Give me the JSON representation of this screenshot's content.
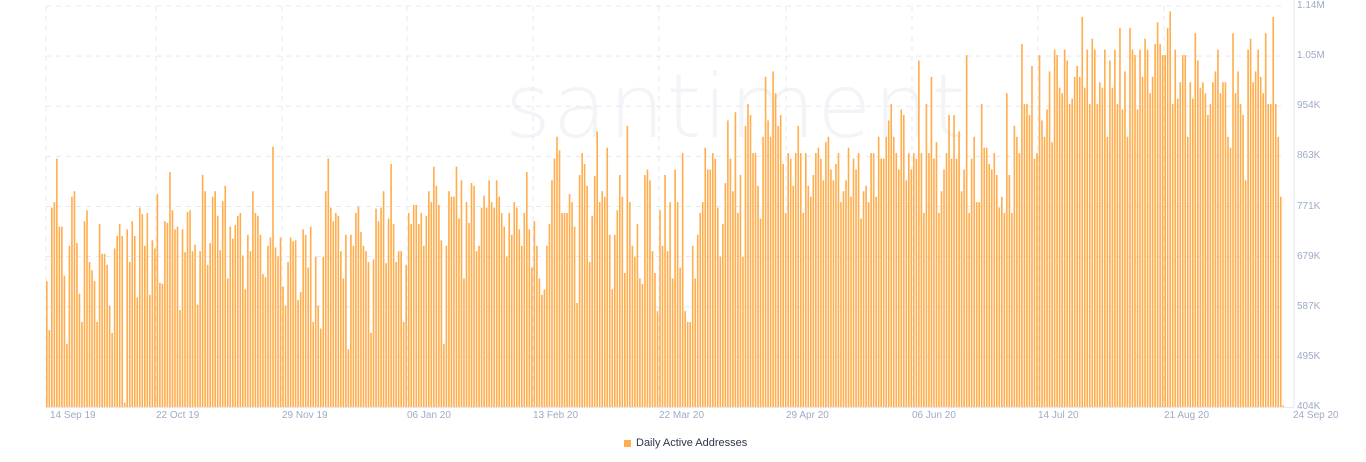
{
  "watermark": "santiment",
  "legend": {
    "label": "Daily Active Addresses",
    "color": "#ffad4d"
  },
  "y_ticks": [
    "1.14M",
    "1.05M",
    "954K",
    "863K",
    "771K",
    "679K",
    "587K",
    "495K",
    "404K"
  ],
  "x_ticks": [
    "14 Sep 19",
    "22 Oct 19",
    "29 Nov 19",
    "06 Jan 20",
    "13 Feb 20",
    "22 Mar 20",
    "29 Apr 20",
    "06 Jun 20",
    "14 Jul 20",
    "21 Aug 20",
    "24 Sep 20"
  ],
  "chart_data": {
    "type": "bar",
    "title": "",
    "xlabel": "",
    "ylabel": "",
    "series": [
      {
        "name": "Daily Active Addresses",
        "color": "#ffad4d"
      }
    ],
    "x_start": "14 Sep 19",
    "x_end": "24 Sep 20",
    "x_tick_labels": [
      "14 Sep 19",
      "22 Oct 19",
      "29 Nov 19",
      "06 Jan 20",
      "13 Feb 20",
      "22 Mar 20",
      "29 Apr 20",
      "06 Jun 20",
      "14 Jul 20",
      "21 Aug 20",
      "24 Sep 20"
    ],
    "y_tick_labels": [
      "404K",
      "495K",
      "587K",
      "679K",
      "771K",
      "863K",
      "954K",
      "1.05M",
      "1.14M"
    ],
    "ylim": [
      404000,
      1140000
    ],
    "grid": true,
    "legend_position": "bottom",
    "values_k": [
      635,
      545,
      770,
      780,
      860,
      735,
      735,
      645,
      520,
      700,
      790,
      800,
      705,
      612,
      560,
      745,
      765,
      670,
      655,
      635,
      560,
      740,
      685,
      685,
      665,
      590,
      540,
      695,
      718,
      740,
      718,
      412,
      730,
      670,
      745,
      718,
      605,
      770,
      758,
      700,
      760,
      610,
      710,
      695,
      795,
      632,
      630,
      745,
      742,
      835,
      765,
      730,
      735,
      582,
      730,
      688,
      762,
      765,
      690,
      702,
      592,
      690,
      830,
      800,
      665,
      705,
      790,
      800,
      755,
      692,
      782,
      810,
      640,
      735,
      713,
      738,
      755,
      760,
      682,
      620,
      720,
      690,
      800,
      760,
      755,
      720,
      648,
      642,
      700,
      715,
      882,
      697,
      680,
      715,
      625,
      590,
      670,
      715,
      708,
      710,
      600,
      615,
      730,
      720,
      660,
      735,
      560,
      680,
      590,
      548,
      680,
      800,
      860,
      770,
      745,
      760,
      755,
      690,
      640,
      720,
      510,
      720,
      700,
      760,
      772,
      725,
      700,
      690,
      670,
      540,
      675,
      768,
      745,
      770,
      800,
      668,
      750,
      850,
      740,
      670,
      690,
      690,
      560,
      665,
      760,
      740,
      775,
      775,
      740,
      760,
      700,
      755,
      800,
      780,
      845,
      810,
      775,
      710,
      520,
      700,
      800,
      790,
      790,
      845,
      750,
      820,
      640,
      780,
      742,
      815,
      810,
      690,
      700,
      770,
      792,
      770,
      820,
      780,
      770,
      820,
      790,
      760,
      735,
      680,
      760,
      720,
      780,
      770,
      730,
      700,
      760,
      835,
      730,
      660,
      745,
      700,
      640,
      610,
      620,
      700,
      740,
      820,
      860,
      900,
      875,
      760,
      760,
      760,
      795,
      780,
      735,
      595,
      830,
      870,
      850,
      810,
      670,
      755,
      828,
      910,
      780,
      800,
      790,
      880,
      720,
      620,
      720,
      765,
      830,
      790,
      650,
      920,
      780,
      700,
      680,
      740,
      640,
      630,
      830,
      840,
      820,
      690,
      650,
      580,
      765,
      700,
      830,
      690,
      780,
      640,
      840,
      780,
      660,
      870,
      580,
      560,
      560,
      700,
      640,
      720,
      760,
      780,
      880,
      840,
      840,
      870,
      860,
      770,
      680,
      740,
      815,
      930,
      860,
      800,
      945,
      760,
      830,
      680,
      920,
      960,
      940,
      870,
      870,
      810,
      750,
      900,
      1010,
      930,
      900,
      1020,
      980,
      920,
      940,
      850,
      760,
      870,
      860,
      810,
      870,
      920,
      870,
      760,
      870,
      810,
      790,
      830,
      870,
      880,
      860,
      820,
      890,
      900,
      840,
      820,
      850,
      870,
      780,
      800,
      820,
      880,
      790,
      860,
      840,
      870,
      750,
      800,
      810,
      780,
      870,
      870,
      790,
      900,
      860,
      860,
      900,
      930,
      960,
      900,
      870,
      840,
      950,
      940,
      820,
      870,
      840,
      870,
      860,
      1040,
      870,
      760,
      960,
      870,
      1010,
      860,
      890,
      760,
      800,
      840,
      870,
      940,
      860,
      940,
      860,
      910,
      800,
      840,
      1050,
      760,
      860,
      900,
      780,
      780,
      960,
      880,
      880,
      850,
      840,
      870,
      830,
      770,
      790,
      760,
      980,
      830,
      760,
      920,
      900,
      870,
      1070,
      960,
      960,
      940,
      1030,
      860,
      870,
      1050,
      930,
      900,
      950,
      1020,
      890,
      1060,
      1050,
      990,
      980,
      1060,
      1040,
      960,
      970,
      1010,
      1030,
      1010,
      1120,
      990,
      1060,
      960,
      1080,
      1060,
      960,
      1000,
      990,
      1060,
      900,
      1040,
      990,
      1060,
      960,
      1100,
      950,
      1020,
      900,
      1100,
      1060,
      1050,
      950,
      1060,
      1010,
      1080,
      1060,
      980,
      1010,
      1070,
      1110,
      1070,
      1050,
      1050,
      1100,
      1130,
      960,
      1060,
      970,
      1000,
      1050,
      1050,
      900,
      1000,
      970,
      1090,
      1040,
      990,
      1000,
      980,
      940,
      960,
      1000,
      1020,
      1060,
      980,
      1000,
      1000,
      900,
      880,
      1090,
      980,
      1020,
      960,
      940,
      820,
      1060,
      1080,
      1000,
      1020,
      1060,
      1010,
      980,
      1090,
      960,
      960,
      1120,
      960,
      900,
      790,
      407
    ]
  }
}
